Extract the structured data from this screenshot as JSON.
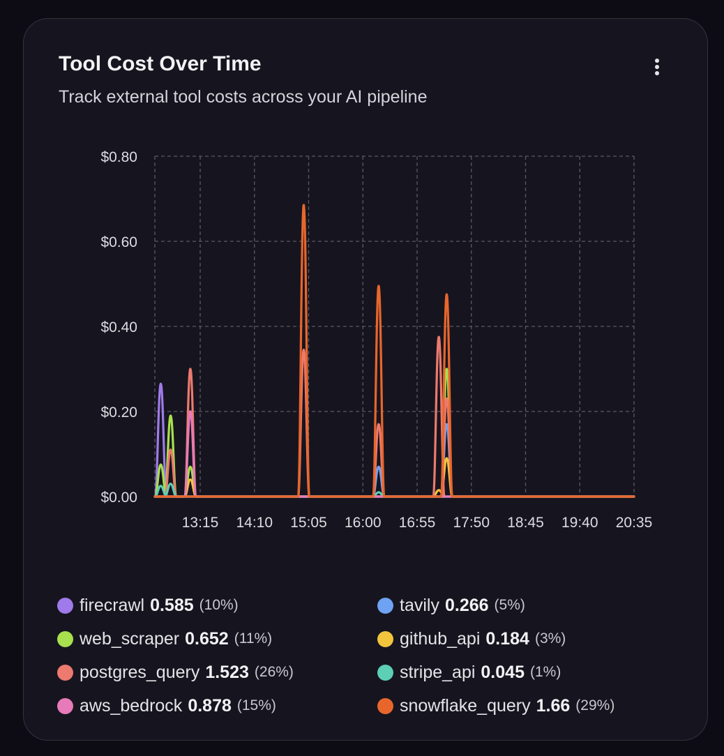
{
  "card": {
    "title": "Tool Cost Over Time",
    "subtitle": "Track external tool costs across your AI pipeline",
    "menu_icon": "more-vertical-icon"
  },
  "chart_data": {
    "type": "area",
    "y_tick_labels": [
      "$0.00",
      "$0.20",
      "$0.40",
      "$0.60",
      "$0.80"
    ],
    "y_ticks": [
      0,
      0.2,
      0.4,
      0.6,
      0.8
    ],
    "ylim": [
      0,
      0.8
    ],
    "x_tick_labels": [
      "13:15",
      "14:10",
      "15:05",
      "16:00",
      "16:55",
      "17:50",
      "18:45",
      "19:40",
      "20:35"
    ],
    "x_ticks": [
      "13:15",
      "14:10",
      "15:05",
      "16:00",
      "16:55",
      "17:50",
      "18:45",
      "19:40",
      "20:35"
    ],
    "xlim": [
      "12:29",
      "20:35"
    ],
    "grid": true,
    "legend_position": "bottom",
    "series": [
      {
        "name": "firecrawl",
        "color": "#9f7aea",
        "points": [
          [
            "12:35",
            0.265
          ]
        ]
      },
      {
        "name": "tavily",
        "color": "#6fa2f3",
        "points": [
          [
            "16:16",
            0.07
          ],
          [
            "17:25",
            0.17
          ]
        ]
      },
      {
        "name": "web_scraper",
        "color": "#a8e04e",
        "points": [
          [
            "12:35",
            0.075
          ],
          [
            "12:45",
            0.19
          ],
          [
            "13:05",
            0.07
          ],
          [
            "17:25",
            0.3
          ]
        ]
      },
      {
        "name": "github_api",
        "color": "#f2c53d",
        "points": [
          [
            "13:05",
            0.04
          ],
          [
            "17:17",
            0.015
          ],
          [
            "17:25",
            0.09
          ]
        ]
      },
      {
        "name": "postgres_query",
        "color": "#ec7a6e",
        "points": [
          [
            "12:45",
            0.11
          ],
          [
            "13:05",
            0.3
          ],
          [
            "15:00",
            0.345
          ],
          [
            "16:16",
            0.17
          ],
          [
            "17:17",
            0.375
          ],
          [
            "17:25",
            0.23
          ]
        ]
      },
      {
        "name": "stripe_api",
        "color": "#5ccfb5",
        "points": [
          [
            "12:35",
            0.025
          ],
          [
            "12:45",
            0.03
          ],
          [
            "16:16",
            0.01
          ]
        ]
      },
      {
        "name": "aws_bedrock",
        "color": "#e77ab8",
        "points": [
          [
            "13:05",
            0.2
          ]
        ]
      },
      {
        "name": "snowflake_query",
        "color": "#e8662c",
        "points": [
          [
            "15:00",
            0.685
          ],
          [
            "16:16",
            0.495
          ],
          [
            "17:25",
            0.475
          ]
        ]
      }
    ]
  },
  "legend": {
    "items": [
      {
        "name": "firecrawl",
        "value": "0.585",
        "pct": "(10%)",
        "color": "#9f7aea"
      },
      {
        "name": "tavily",
        "value": "0.266",
        "pct": "(5%)",
        "color": "#6fa2f3"
      },
      {
        "name": "web_scraper",
        "value": "0.652",
        "pct": "(11%)",
        "color": "#a8e04e"
      },
      {
        "name": "github_api",
        "value": "0.184",
        "pct": "(3%)",
        "color": "#f2c53d"
      },
      {
        "name": "postgres_query",
        "value": "1.523",
        "pct": "(26%)",
        "color": "#ec7a6e"
      },
      {
        "name": "stripe_api",
        "value": "0.045",
        "pct": "(1%)",
        "color": "#5ccfb5"
      },
      {
        "name": "aws_bedrock",
        "value": "0.878",
        "pct": "(15%)",
        "color": "#e77ab8"
      },
      {
        "name": "snowflake_query",
        "value": "1.66",
        "pct": "(29%)",
        "color": "#e8662c"
      }
    ]
  }
}
